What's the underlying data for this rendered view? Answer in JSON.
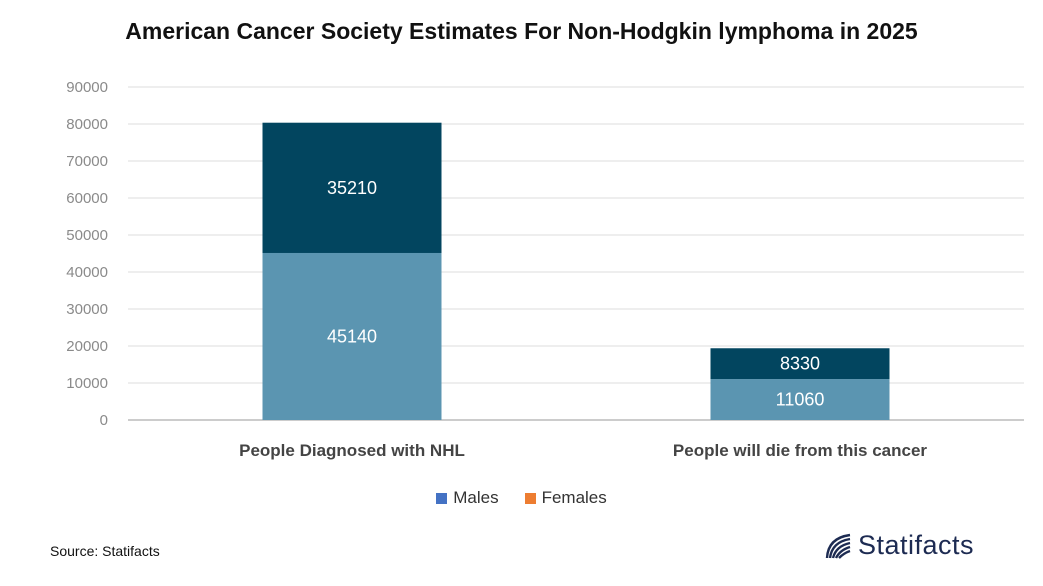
{
  "chart_data": {
    "type": "bar",
    "stacked": true,
    "title": "American Cancer Society Estimates For Non-Hodgkin lymphoma in 2025",
    "categories": [
      "People Diagnosed with NHL",
      "People will die from this cancer"
    ],
    "series": [
      {
        "name": "Males",
        "values": [
          45140,
          11060
        ],
        "color": "#5b95b1",
        "legend_color": "#4472c4"
      },
      {
        "name": "Females",
        "values": [
          35210,
          8330
        ],
        "color": "#02455f",
        "legend_color": "#ed7d31"
      }
    ],
    "yticks": [
      "0",
      "10000",
      "20000",
      "30000",
      "40000",
      "50000",
      "60000",
      "70000",
      "80000",
      "90000"
    ],
    "ylim": [
      0,
      90000
    ],
    "xlabel": "",
    "ylabel": "",
    "grid": true,
    "legend_position": "bottom"
  },
  "source": "Source: Statifacts",
  "brand": "Statifacts"
}
